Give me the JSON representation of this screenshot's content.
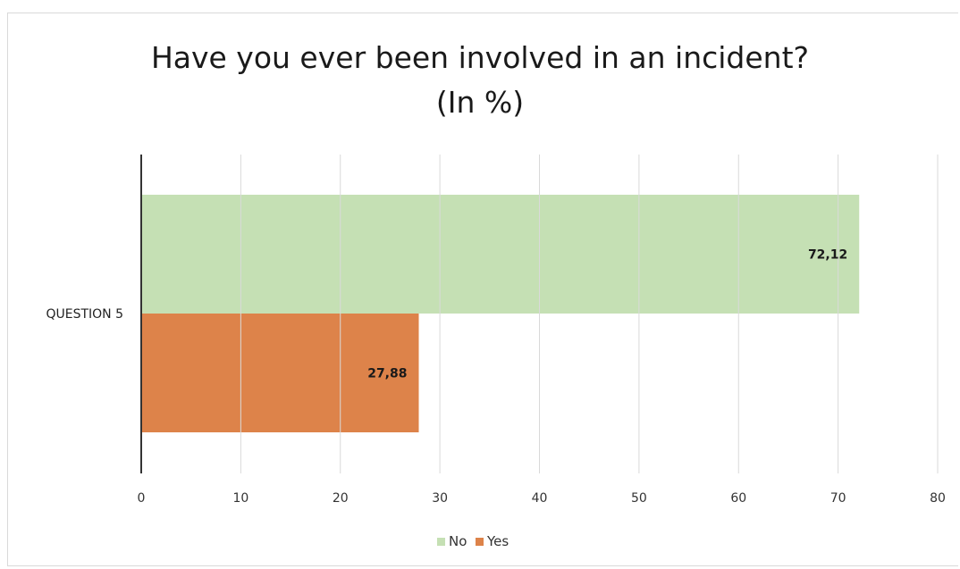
{
  "chart_data": {
    "type": "bar",
    "orientation": "horizontal",
    "title_line1": "Have you ever been involved in an incident?",
    "title_line2": "(In %)",
    "categories": [
      "QUESTION 5"
    ],
    "series": [
      {
        "name": "No",
        "values": [
          72.12
        ],
        "label": "72,12",
        "color": "#c5e0b4"
      },
      {
        "name": "Yes",
        "values": [
          27.88
        ],
        "label": "27,88",
        "color": "#dd834a"
      }
    ],
    "xlim": [
      0,
      80
    ],
    "xticks": [
      0,
      10,
      20,
      30,
      40,
      50,
      60,
      70,
      80
    ],
    "grid": true,
    "legend_position": "bottom"
  }
}
